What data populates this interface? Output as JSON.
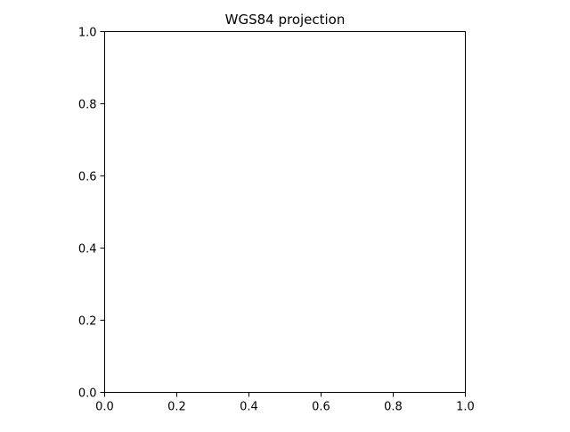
{
  "chart_data": {
    "type": "scatter",
    "title": "WGS84 projection",
    "xlabel": "",
    "ylabel": "",
    "xlim": [
      0.0,
      1.0
    ],
    "ylim": [
      0.0,
      1.0
    ],
    "x_ticks": [
      0.0,
      0.2,
      0.4,
      0.6,
      0.8,
      1.0
    ],
    "y_ticks": [
      0.0,
      0.2,
      0.4,
      0.6,
      0.8,
      1.0
    ],
    "x_tick_labels": [
      "0.0",
      "0.2",
      "0.4",
      "0.6",
      "0.8",
      "1.0"
    ],
    "y_tick_labels": [
      "0.0",
      "0.2",
      "0.4",
      "0.6",
      "0.8",
      "1.0"
    ],
    "grid": false,
    "series": []
  }
}
